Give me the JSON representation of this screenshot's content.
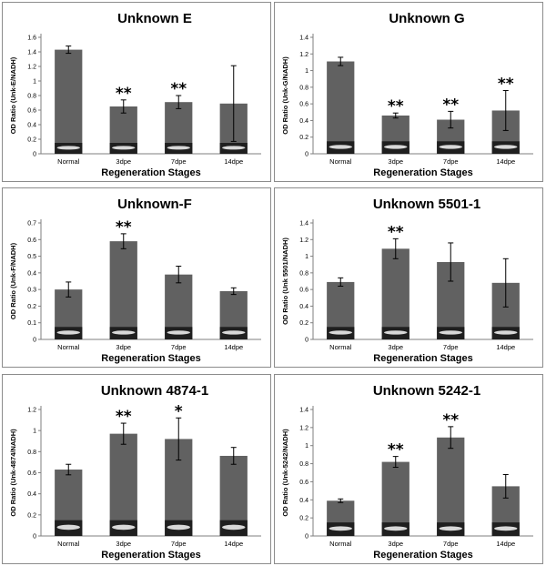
{
  "chart_data": [
    {
      "type": "bar",
      "title": "Unknown E",
      "ylabel": "OD Ratio (Unk-E/NADH)",
      "xlabel": "Regeneration Stages",
      "categories": [
        "Normal",
        "3dpe",
        "7dpe",
        "14dpe"
      ],
      "values": [
        1.43,
        0.65,
        0.71,
        0.69
      ],
      "errors": [
        0.05,
        0.09,
        0.09,
        0.52
      ],
      "significance": [
        "",
        "**",
        "**",
        ""
      ],
      "yticks": [
        "0",
        "0.2",
        "0.4",
        "0.6",
        "0.8",
        "1",
        "1.2",
        "1.4",
        "1.6"
      ],
      "ylim": [
        0,
        1.6
      ],
      "inset_gel_level": 0.15
    },
    {
      "type": "bar",
      "title": "Unknown G",
      "ylabel": "OD Ratio (Unk-G/NADH)",
      "xlabel": "Regeneration Stages",
      "categories": [
        "Normal",
        "3dpe",
        "7dpe",
        "14dpe"
      ],
      "values": [
        1.11,
        0.46,
        0.41,
        0.52
      ],
      "errors": [
        0.05,
        0.03,
        0.1,
        0.24
      ],
      "significance": [
        "",
        "**",
        "**",
        "**"
      ],
      "yticks": [
        "0",
        "0.2",
        "0.4",
        "0.6",
        "0.8",
        "1",
        "1.2",
        "1.4"
      ],
      "ylim": [
        0,
        1.4
      ],
      "inset_gel_level": 0.15
    },
    {
      "type": "bar",
      "title": "Unknown-F",
      "ylabel": "OD Ratio (Unk-F/NADH)",
      "xlabel": "Regeneration Stages",
      "categories": [
        "Normal",
        "3dpe",
        "7dpe",
        "14dpe"
      ],
      "values": [
        0.3,
        0.59,
        0.39,
        0.29
      ],
      "errors": [
        0.045,
        0.045,
        0.05,
        0.02
      ],
      "significance": [
        "",
        "**",
        "",
        ""
      ],
      "yticks": [
        "0",
        "0.1",
        "0.2",
        "0.3",
        "0.4",
        "0.5",
        "0.6",
        "0.7"
      ],
      "ylim": [
        0,
        0.7
      ],
      "inset_gel_level": 0.075
    },
    {
      "type": "bar",
      "title": "Unknown 5501-1",
      "ylabel": "OD Ratio (Unk 5501/NADH)",
      "xlabel": "Regeneration Stages",
      "categories": [
        "Normal",
        "3dpe",
        "7dpe",
        "14dpe"
      ],
      "values": [
        0.69,
        1.09,
        0.93,
        0.68
      ],
      "errors": [
        0.05,
        0.12,
        0.23,
        0.29
      ],
      "significance": [
        "",
        "**",
        "",
        ""
      ],
      "yticks": [
        "0",
        "0.2",
        "0.4",
        "0.6",
        "0.8",
        "1",
        "1.2",
        "1.4"
      ],
      "ylim": [
        0,
        1.4
      ],
      "inset_gel_level": 0.15
    },
    {
      "type": "bar",
      "title": "Unknown 4874-1",
      "ylabel": "OD Ratio (Unk-4874/NADH)",
      "xlabel": "Regeneration Stages",
      "categories": [
        "Normal",
        "3dpe",
        "7dpe",
        "14dpe"
      ],
      "values": [
        0.63,
        0.97,
        0.92,
        0.76
      ],
      "errors": [
        0.05,
        0.1,
        0.2,
        0.08
      ],
      "significance": [
        "",
        "**",
        "*",
        ""
      ],
      "yticks": [
        "0",
        "0.2",
        "0.4",
        "0.6",
        "0.8",
        "1",
        "1.2"
      ],
      "ylim": [
        0,
        1.2
      ],
      "inset_gel_level": 0.15
    },
    {
      "type": "bar",
      "title": "Unknown 5242-1",
      "ylabel": "OD Ratio (Unk-5242/NADH)",
      "xlabel": "Regeneration Stages",
      "categories": [
        "Normal",
        "3dpe",
        "7dpe",
        "14dpe"
      ],
      "values": [
        0.39,
        0.82,
        1.09,
        0.55
      ],
      "errors": [
        0.02,
        0.06,
        0.12,
        0.13
      ],
      "significance": [
        "",
        "**",
        "**",
        ""
      ],
      "yticks": [
        "0",
        "0.2",
        "0.4",
        "0.6",
        "0.8",
        "1",
        "1.2",
        "1.4"
      ],
      "ylim": [
        0,
        1.4
      ],
      "inset_gel_level": 0.15
    }
  ]
}
